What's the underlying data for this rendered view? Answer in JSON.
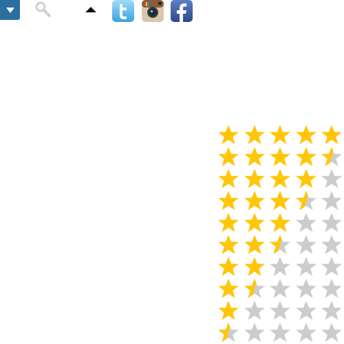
{
  "toolbar": {
    "dropdown_icon": "dropdown-triangle-icon",
    "search_icon": "search-icon",
    "scroll_up_icon": "caret-up-icon",
    "social_links": [
      {
        "name": "twitter-icon",
        "letter": "t",
        "color": "#5fb7e8"
      },
      {
        "name": "instagram-icon",
        "color": "#8a6a4a"
      },
      {
        "name": "facebook-icon",
        "letter": "f",
        "color": "#3b5a9a"
      }
    ],
    "accent_color": "#2a6fa0"
  },
  "ratings": {
    "max_stars": 5,
    "filled_color": "#ffc60a",
    "empty_color": "#cccccc",
    "values": [
      5,
      4.5,
      4,
      3.5,
      3,
      2.5,
      2,
      1.5,
      1,
      0.5
    ]
  }
}
